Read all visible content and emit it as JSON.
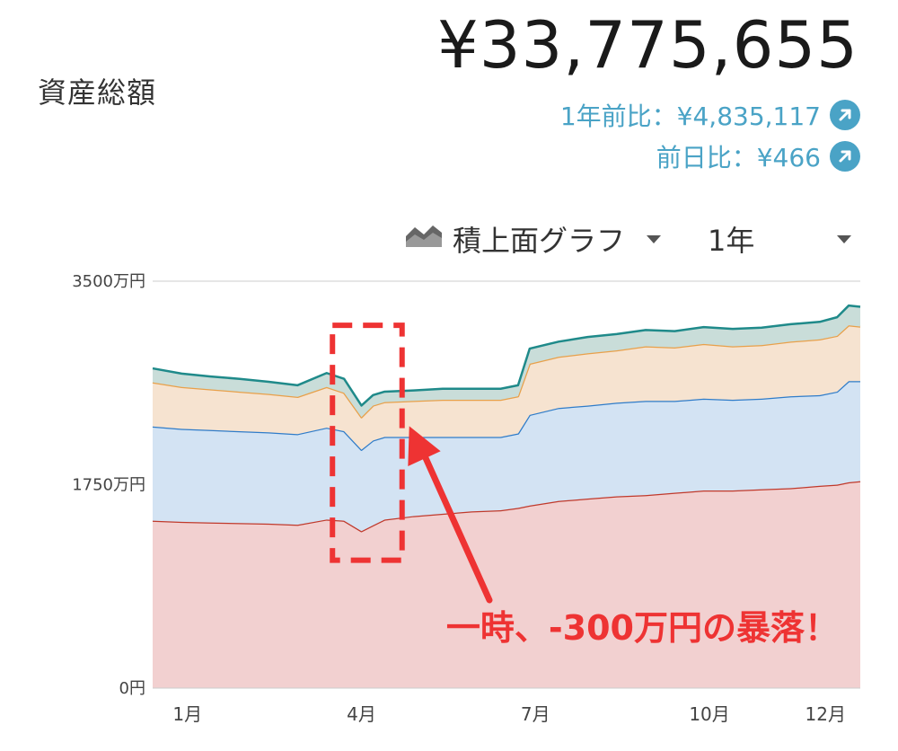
{
  "header": {
    "title": "資産総額",
    "total": "¥33,775,655",
    "year_change": "1年前比：¥4,835,117",
    "day_change": "前日比：¥466",
    "year_change_icon": "arrow-up-right-icon",
    "day_change_icon": "arrow-up-right-icon",
    "accent_color": "#4aa3c6"
  },
  "controls": {
    "chart_type_icon": "stacked-area-icon",
    "chart_type_label": "積上面グラフ",
    "period_label": "1年"
  },
  "chart_data": {
    "type": "area",
    "stacked": true,
    "y_unit": "万円",
    "ylim": [
      0,
      3500
    ],
    "yticks": [
      "0円",
      "1750万円",
      "3500万円"
    ],
    "x_range": [
      0,
      12.2
    ],
    "xticks": [
      {
        "x": 0.6,
        "label": "1月"
      },
      {
        "x": 3.6,
        "label": "4月"
      },
      {
        "x": 6.6,
        "label": "7月"
      },
      {
        "x": 9.6,
        "label": "10月"
      },
      {
        "x": 11.6,
        "label": "12月"
      }
    ],
    "x": [
      0,
      0.5,
      1,
      1.5,
      2,
      2.5,
      3,
      3.3,
      3.6,
      3.8,
      4,
      4.5,
      5,
      5.5,
      6,
      6.3,
      6.5,
      7,
      7.5,
      8,
      8.5,
      9,
      9.5,
      10,
      10.5,
      11,
      11.5,
      11.8,
      12,
      12.2
    ],
    "series": [
      {
        "color_line": "#c0392b",
        "color_fill": "#f2d0d0",
        "values": [
          1440,
          1430,
          1425,
          1420,
          1415,
          1405,
          1450,
          1440,
          1350,
          1400,
          1450,
          1480,
          1500,
          1520,
          1530,
          1550,
          1570,
          1610,
          1630,
          1650,
          1660,
          1680,
          1700,
          1700,
          1710,
          1720,
          1740,
          1750,
          1770,
          1780
        ]
      },
      {
        "color_line": "#2f7cc9",
        "color_fill": "#d3e3f3",
        "values": [
          810,
          800,
          795,
          790,
          785,
          780,
          790,
          770,
          700,
          730,
          710,
          680,
          660,
          640,
          630,
          640,
          780,
          800,
          800,
          805,
          810,
          790,
          790,
          780,
          780,
          790,
          780,
          800,
          870,
          860
        ]
      },
      {
        "color_line": "#e8a04a",
        "color_fill": "#f6e3d0",
        "values": [
          380,
          360,
          350,
          340,
          330,
          320,
          350,
          330,
          280,
          300,
          300,
          310,
          320,
          320,
          320,
          320,
          440,
          440,
          450,
          450,
          470,
          460,
          470,
          460,
          460,
          470,
          480,
          480,
          480,
          470
        ]
      },
      {
        "color_line": "#1f8a8a",
        "color_fill": "#c9ddd9",
        "values": [
          120,
          115,
          110,
          110,
          105,
          100,
          120,
          120,
          100,
          90,
          90,
          90,
          95,
          95,
          95,
          95,
          130,
          130,
          140,
          140,
          140,
          140,
          145,
          150,
          150,
          150,
          150,
          160,
          170,
          170
        ]
      }
    ],
    "annotation": {
      "text": "一時、-300万円の暴落！",
      "color": "#ee3333",
      "highlight_x_range": [
        3.1,
        4.3
      ],
      "highlight_y_range": [
        1100,
        3120
      ],
      "arrow_target": [
        4.3,
        2300
      ]
    }
  }
}
